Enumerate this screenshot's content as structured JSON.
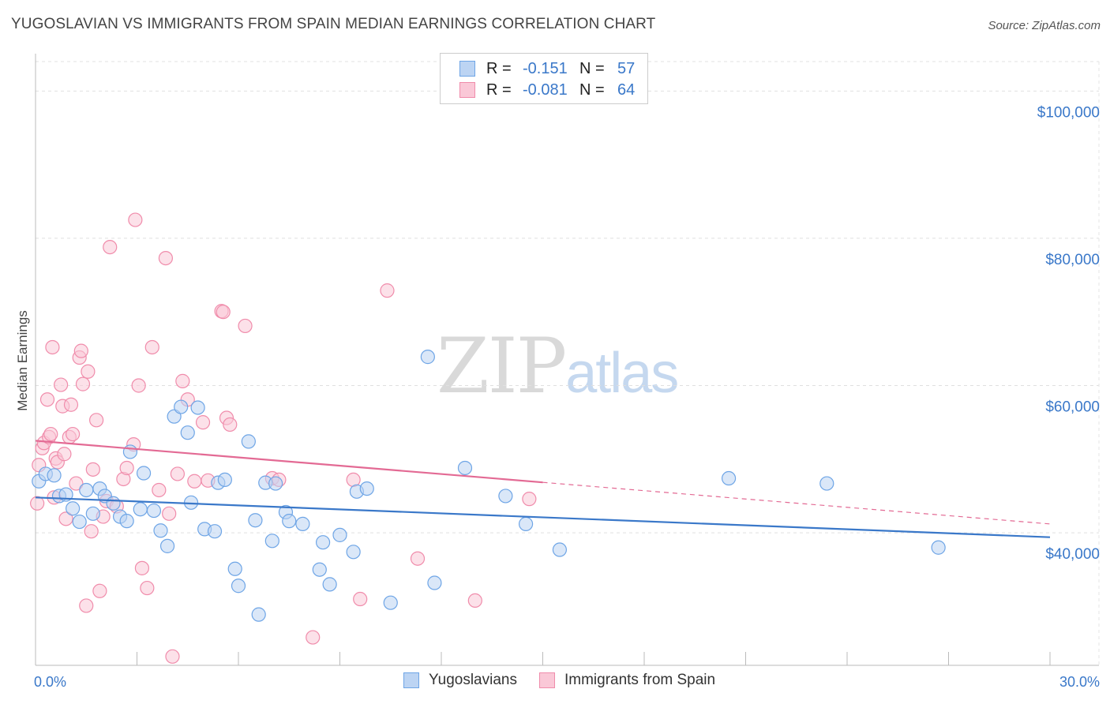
{
  "title": "YUGOSLAVIAN VS IMMIGRANTS FROM SPAIN MEDIAN EARNINGS CORRELATION CHART",
  "source": "Source: ZipAtlas.com",
  "watermark": {
    "zip": "ZIP",
    "atlas": "atlas"
  },
  "legend": {
    "rows": [
      {
        "r_label": "R =",
        "r_value": "-0.151",
        "n_label": "N =",
        "n_value": "57",
        "color": "#6ea5e6",
        "fill": "#bcd4f3"
      },
      {
        "r_label": "R =",
        "r_value": "-0.081",
        "n_label": "N =",
        "n_value": "64",
        "color": "#f08cab",
        "fill": "#fac8d7"
      }
    ]
  },
  "bottom_legend": [
    {
      "label": "Yugoslavians",
      "color": "#6ea5e6",
      "fill": "#bcd4f3"
    },
    {
      "label": "Immigrants from Spain",
      "color": "#f08cab",
      "fill": "#fac8d7"
    }
  ],
  "chart_data": {
    "type": "scatter",
    "title": "YUGOSLAVIAN VS IMMIGRANTS FROM SPAIN MEDIAN EARNINGS CORRELATION CHART",
    "ylabel": "Median Earnings",
    "xlim": [
      0,
      30
    ],
    "ylim": [
      22000,
      104000
    ],
    "x_tick_labels": [
      "0.0%",
      "30.0%"
    ],
    "y_ticks": [
      40000,
      60000,
      80000,
      100000
    ],
    "y_tick_labels": [
      "$40,000",
      "$60,000",
      "$80,000",
      "$100,000"
    ],
    "grid": true,
    "series": [
      {
        "name": "Yugoslavians",
        "color": "#3a78c9",
        "fill": "#bcd4f3",
        "trend": {
          "x": [
            0,
            30
          ],
          "y": [
            44800,
            39400
          ],
          "solid_until": 30
        },
        "points": [
          [
            0.1,
            47000
          ],
          [
            0.3,
            48000
          ],
          [
            0.55,
            47800
          ],
          [
            0.7,
            45000
          ],
          [
            0.9,
            45200
          ],
          [
            1.1,
            43300
          ],
          [
            1.3,
            41500
          ],
          [
            1.5,
            45800
          ],
          [
            1.7,
            42600
          ],
          [
            1.9,
            46000
          ],
          [
            2.05,
            45000
          ],
          [
            2.3,
            44000
          ],
          [
            2.5,
            42200
          ],
          [
            2.7,
            41600
          ],
          [
            2.8,
            51000
          ],
          [
            3.1,
            43200
          ],
          [
            3.2,
            48100
          ],
          [
            3.5,
            43000
          ],
          [
            3.7,
            40300
          ],
          [
            3.9,
            38200
          ],
          [
            4.1,
            55800
          ],
          [
            4.3,
            57100
          ],
          [
            4.5,
            53600
          ],
          [
            4.6,
            44100
          ],
          [
            4.8,
            57000
          ],
          [
            5.0,
            40500
          ],
          [
            5.3,
            40200
          ],
          [
            5.4,
            46800
          ],
          [
            5.6,
            47200
          ],
          [
            5.9,
            35100
          ],
          [
            6.0,
            32800
          ],
          [
            6.3,
            52400
          ],
          [
            6.5,
            41700
          ],
          [
            6.6,
            28900
          ],
          [
            6.8,
            46800
          ],
          [
            7.0,
            38900
          ],
          [
            7.1,
            46700
          ],
          [
            7.4,
            42800
          ],
          [
            7.5,
            41600
          ],
          [
            7.9,
            41200
          ],
          [
            8.4,
            35000
          ],
          [
            8.5,
            38700
          ],
          [
            8.7,
            33000
          ],
          [
            9.0,
            39700
          ],
          [
            9.4,
            37400
          ],
          [
            9.5,
            45600
          ],
          [
            9.8,
            46000
          ],
          [
            10.5,
            30500
          ],
          [
            11.6,
            63900
          ],
          [
            11.8,
            33200
          ],
          [
            12.7,
            48800
          ],
          [
            13.9,
            45000
          ],
          [
            14.5,
            41200
          ],
          [
            15.5,
            37700
          ],
          [
            20.5,
            47400
          ],
          [
            23.4,
            46700
          ],
          [
            26.7,
            38000
          ]
        ]
      },
      {
        "name": "Immigrants from Spain",
        "color": "#e36a94",
        "fill": "#fac8d7",
        "trend": {
          "x": [
            0,
            30
          ],
          "y": [
            52500,
            41200
          ],
          "solid_until": 15
        },
        "points": [
          [
            0.05,
            44000
          ],
          [
            0.1,
            49200
          ],
          [
            0.2,
            51500
          ],
          [
            0.25,
            52200
          ],
          [
            0.35,
            58100
          ],
          [
            0.4,
            53000
          ],
          [
            0.45,
            53400
          ],
          [
            0.5,
            65200
          ],
          [
            0.55,
            44800
          ],
          [
            0.6,
            50100
          ],
          [
            0.65,
            49600
          ],
          [
            0.75,
            60100
          ],
          [
            0.8,
            57200
          ],
          [
            0.85,
            50700
          ],
          [
            0.9,
            41900
          ],
          [
            1.0,
            53000
          ],
          [
            1.05,
            57400
          ],
          [
            1.1,
            53400
          ],
          [
            1.2,
            46700
          ],
          [
            1.3,
            63800
          ],
          [
            1.35,
            64700
          ],
          [
            1.4,
            60200
          ],
          [
            1.5,
            30100
          ],
          [
            1.55,
            61900
          ],
          [
            1.65,
            40200
          ],
          [
            1.7,
            48600
          ],
          [
            1.8,
            55300
          ],
          [
            1.9,
            32100
          ],
          [
            2.0,
            42200
          ],
          [
            2.1,
            44300
          ],
          [
            2.2,
            78800
          ],
          [
            2.4,
            43600
          ],
          [
            2.6,
            47300
          ],
          [
            2.7,
            48800
          ],
          [
            2.9,
            52000
          ],
          [
            2.95,
            82500
          ],
          [
            3.05,
            60000
          ],
          [
            3.15,
            35200
          ],
          [
            3.3,
            32500
          ],
          [
            3.45,
            65200
          ],
          [
            3.65,
            45800
          ],
          [
            3.85,
            77300
          ],
          [
            3.95,
            42600
          ],
          [
            4.05,
            23200
          ],
          [
            4.2,
            48000
          ],
          [
            4.35,
            60600
          ],
          [
            4.5,
            58100
          ],
          [
            4.7,
            47000
          ],
          [
            4.95,
            55000
          ],
          [
            5.1,
            47100
          ],
          [
            5.5,
            70100
          ],
          [
            5.55,
            70000
          ],
          [
            5.65,
            55600
          ],
          [
            5.75,
            54700
          ],
          [
            6.2,
            68100
          ],
          [
            7.0,
            47400
          ],
          [
            7.2,
            47200
          ],
          [
            8.2,
            25800
          ],
          [
            9.4,
            47200
          ],
          [
            9.6,
            31000
          ],
          [
            10.4,
            72900
          ],
          [
            11.3,
            36500
          ],
          [
            13.0,
            30800
          ],
          [
            14.6,
            44600
          ]
        ]
      }
    ]
  }
}
